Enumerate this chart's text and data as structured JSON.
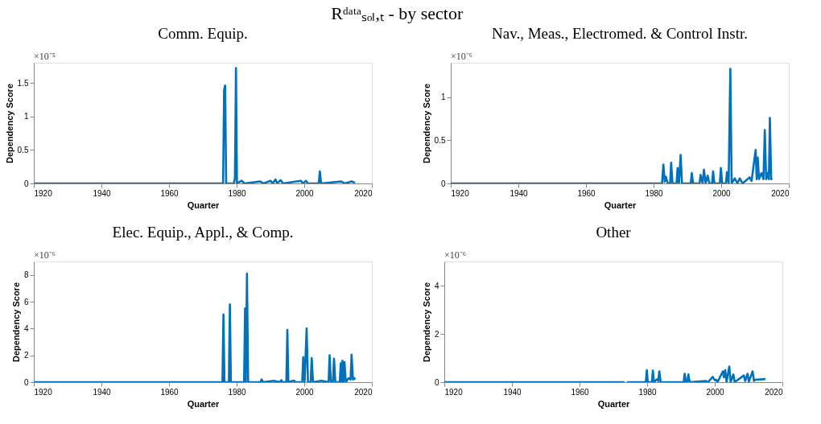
{
  "chart_data": [
    {
      "type": "line",
      "title": "Rᵈᵃᵗᵃₛₒₗ,ₜ - by sector",
      "subtitle": "Comm. Equip.",
      "xlabel": "Quarter",
      "ylabel": "Dependency Score",
      "annotations": [
        "×10⁻⁵"
      ],
      "grid": false,
      "marker": "none",
      "line_style": "solid",
      "xlim": [
        1920,
        2020
      ],
      "xticks": [
        1920,
        1940,
        1960,
        1980,
        2000,
        2020
      ],
      "ylim": [
        0,
        1.8
      ],
      "yticks": [
        0,
        0.5,
        1,
        1.5
      ],
      "series": [
        {
          "color": "#0072bd",
          "x": [
            1920,
            1976,
            1976.3,
            1976.6,
            1976.9,
            1979.2,
            1979.5,
            1979.8,
            1980.1,
            1981.5,
            1982.3,
            1987,
            1988,
            1990,
            1990.7,
            1991.5,
            1992,
            1993,
            1993.7,
            1999,
            1999.6,
            2000.5,
            2001,
            2004.3,
            2004.6,
            2005,
            2011,
            2012,
            2014,
            2015
          ],
          "values": [
            0,
            0,
            1.4,
            1.46,
            0,
            0,
            0.08,
            1.72,
            0,
            0.04,
            0,
            0.03,
            0,
            0.04,
            0,
            0.06,
            0,
            0.05,
            0,
            0.04,
            0,
            0.04,
            0,
            0,
            0.18,
            0,
            0.03,
            0,
            0.03,
            0.01
          ]
        }
      ]
    },
    {
      "type": "line",
      "subtitle": "Nav., Meas., Electromed. & Control Instr.",
      "xlabel": "Quarter",
      "ylabel": "Dependency Score",
      "annotations": [
        "×10⁻⁶"
      ],
      "grid": false,
      "marker": "none",
      "line_style": "solid",
      "xlim": [
        1920,
        2020
      ],
      "xticks": [
        1920,
        1940,
        1960,
        1980,
        2000,
        2020
      ],
      "ylim": [
        0,
        1.4
      ],
      "yticks": [
        0,
        0.5,
        1
      ],
      "series": [
        {
          "color": "#0072bd",
          "x": [
            1920,
            1982.5,
            1982.9,
            1983.3,
            1983.6,
            1984.2,
            1984.9,
            1985.2,
            1985.6,
            1986.8,
            1987.1,
            1987.5,
            1988.0,
            1988.4,
            1991,
            1991.3,
            1991.7,
            1993.6,
            1993.9,
            1994.5,
            1994.9,
            1995.4,
            1996.0,
            1996.5,
            1997.3,
            1997.6,
            1998,
            1999.6,
            1999.9,
            2000.3,
            2001.4,
            2001.7,
            2002.2,
            2002.7,
            2003.1,
            2004.0,
            2004.8,
            2005.5,
            2006.3,
            2008.4,
            2009,
            2010.2,
            2010.5,
            2010.8,
            2011.2,
            2011.9,
            2012.5,
            2012.9,
            2013.3,
            2013.7,
            2014.1,
            2014.4,
            2014.8,
            2015.1
          ],
          "values": [
            0,
            0,
            0.22,
            0.02,
            0.08,
            0,
            0,
            0.24,
            0,
            0,
            0.18,
            0,
            0.33,
            0,
            0,
            0.12,
            0,
            0,
            0.1,
            0,
            0.16,
            0,
            0.09,
            0,
            0,
            0.14,
            0,
            0,
            0.18,
            0,
            0,
            0.13,
            0,
            1.33,
            0,
            0.06,
            0,
            0.06,
            0,
            0.07,
            0.03,
            0.39,
            0.05,
            0.3,
            0.05,
            0.12,
            0.05,
            0.62,
            0.05,
            0.12,
            0.05,
            0.76,
            0.05,
            0.06
          ]
        }
      ]
    },
    {
      "type": "line",
      "subtitle": "Elec. Equip., Appl., & Comp.",
      "xlabel": "Quarter",
      "ylabel": "Dependency Score",
      "annotations": [
        "×10⁻⁶"
      ],
      "grid": false,
      "marker": "none",
      "line_style": "solid",
      "xlim": [
        1920,
        2020
      ],
      "xticks": [
        1920,
        1940,
        1960,
        1980,
        2000,
        2020
      ],
      "ylim": [
        0,
        9
      ],
      "yticks": [
        0,
        2,
        4,
        6,
        8
      ],
      "series": [
        {
          "color": "#0072bd",
          "x": [
            1920,
            1975.8,
            1976.1,
            1976.4,
            1977.7,
            1978.0,
            1978.3,
            1982.2,
            1982.5,
            1982.7,
            1983.05,
            1983.4,
            1987,
            1987.4,
            1987.8,
            1991,
            1992.8,
            1993.2,
            1993.6,
            1994.7,
            1995.0,
            1995.3,
            1996.9,
            1997.4,
            1999.4,
            1999.7,
            2000.1,
            2000.7,
            2001.1,
            2001.9,
            2002.2,
            2002.6,
            2005.1,
            2007.2,
            2007.5,
            2007.9,
            2008.5,
            2008.8,
            2009.2,
            2010.5,
            2010.8,
            2011.1,
            2011.3,
            2011.6,
            2011.9,
            2012.3,
            2013.1,
            2013.7,
            2014.0,
            2014.4,
            2014.8,
            2015.1
          ],
          "values": [
            0,
            0,
            5.05,
            0,
            0,
            5.8,
            0,
            0,
            5.5,
            0,
            8.1,
            0,
            0,
            0.2,
            0,
            0.1,
            0,
            0.15,
            0,
            0,
            3.9,
            0,
            0.12,
            0,
            0,
            1.85,
            0,
            4.0,
            0,
            0,
            1.8,
            0,
            0.1,
            0,
            2.0,
            0,
            0,
            1.75,
            0,
            0,
            1.4,
            0,
            1.6,
            0,
            1.5,
            0,
            0.3,
            0.2,
            2.05,
            0.2,
            0.3,
            0.2
          ]
        }
      ]
    },
    {
      "type": "line",
      "subtitle": "Other",
      "xlabel": "Quarter",
      "ylabel": "Dependency Score",
      "annotations": [
        "×10⁻⁶"
      ],
      "grid": false,
      "marker": "none",
      "line_style": "solid",
      "xlim": [
        1920,
        2020
      ],
      "xticks": [
        1920,
        1940,
        1960,
        1980,
        2000,
        2020
      ],
      "ylim": [
        0,
        5
      ],
      "yticks": [
        0,
        2,
        4
      ],
      "series": [
        {
          "color": "#0072bd",
          "x": [
            1920,
            1973.3,
            1973.5,
            1973.8,
            1974.0,
            1979.6,
            1979.9,
            1980.2,
            1981.4,
            1981.7,
            1982.0,
            1982.9,
            1983.3,
            1983.6,
            1984.0,
            1990.8,
            1991.1,
            1991.5,
            1991.9,
            1992.2,
            1992.6,
            1997.3,
            1998,
            1999.4,
            2000.0,
            2000.4,
            2000.8,
            2002.4,
            2002.7,
            2003.1,
            2003.5,
            2004.3,
            2004.7,
            2005.5,
            2005.9,
            2008.6,
            2009.0,
            2009.7,
            2010.1,
            2011.2,
            2011.6,
            2011.9,
            2015
          ],
          "values": [
            0,
            0,
            null,
            null,
            0,
            0,
            0.5,
            0,
            0,
            0.48,
            0,
            0.12,
            0.05,
            0.45,
            0,
            0,
            0.35,
            0,
            0,
            0.32,
            0,
            0.05,
            0,
            0.22,
            0.08,
            0.1,
            0,
            0.45,
            0.2,
            0.5,
            0,
            0.65,
            0,
            0.32,
            0,
            0.28,
            0.05,
            0.35,
            0.02,
            0.45,
            0.05,
            0.1,
            0.13
          ]
        }
      ]
    }
  ]
}
